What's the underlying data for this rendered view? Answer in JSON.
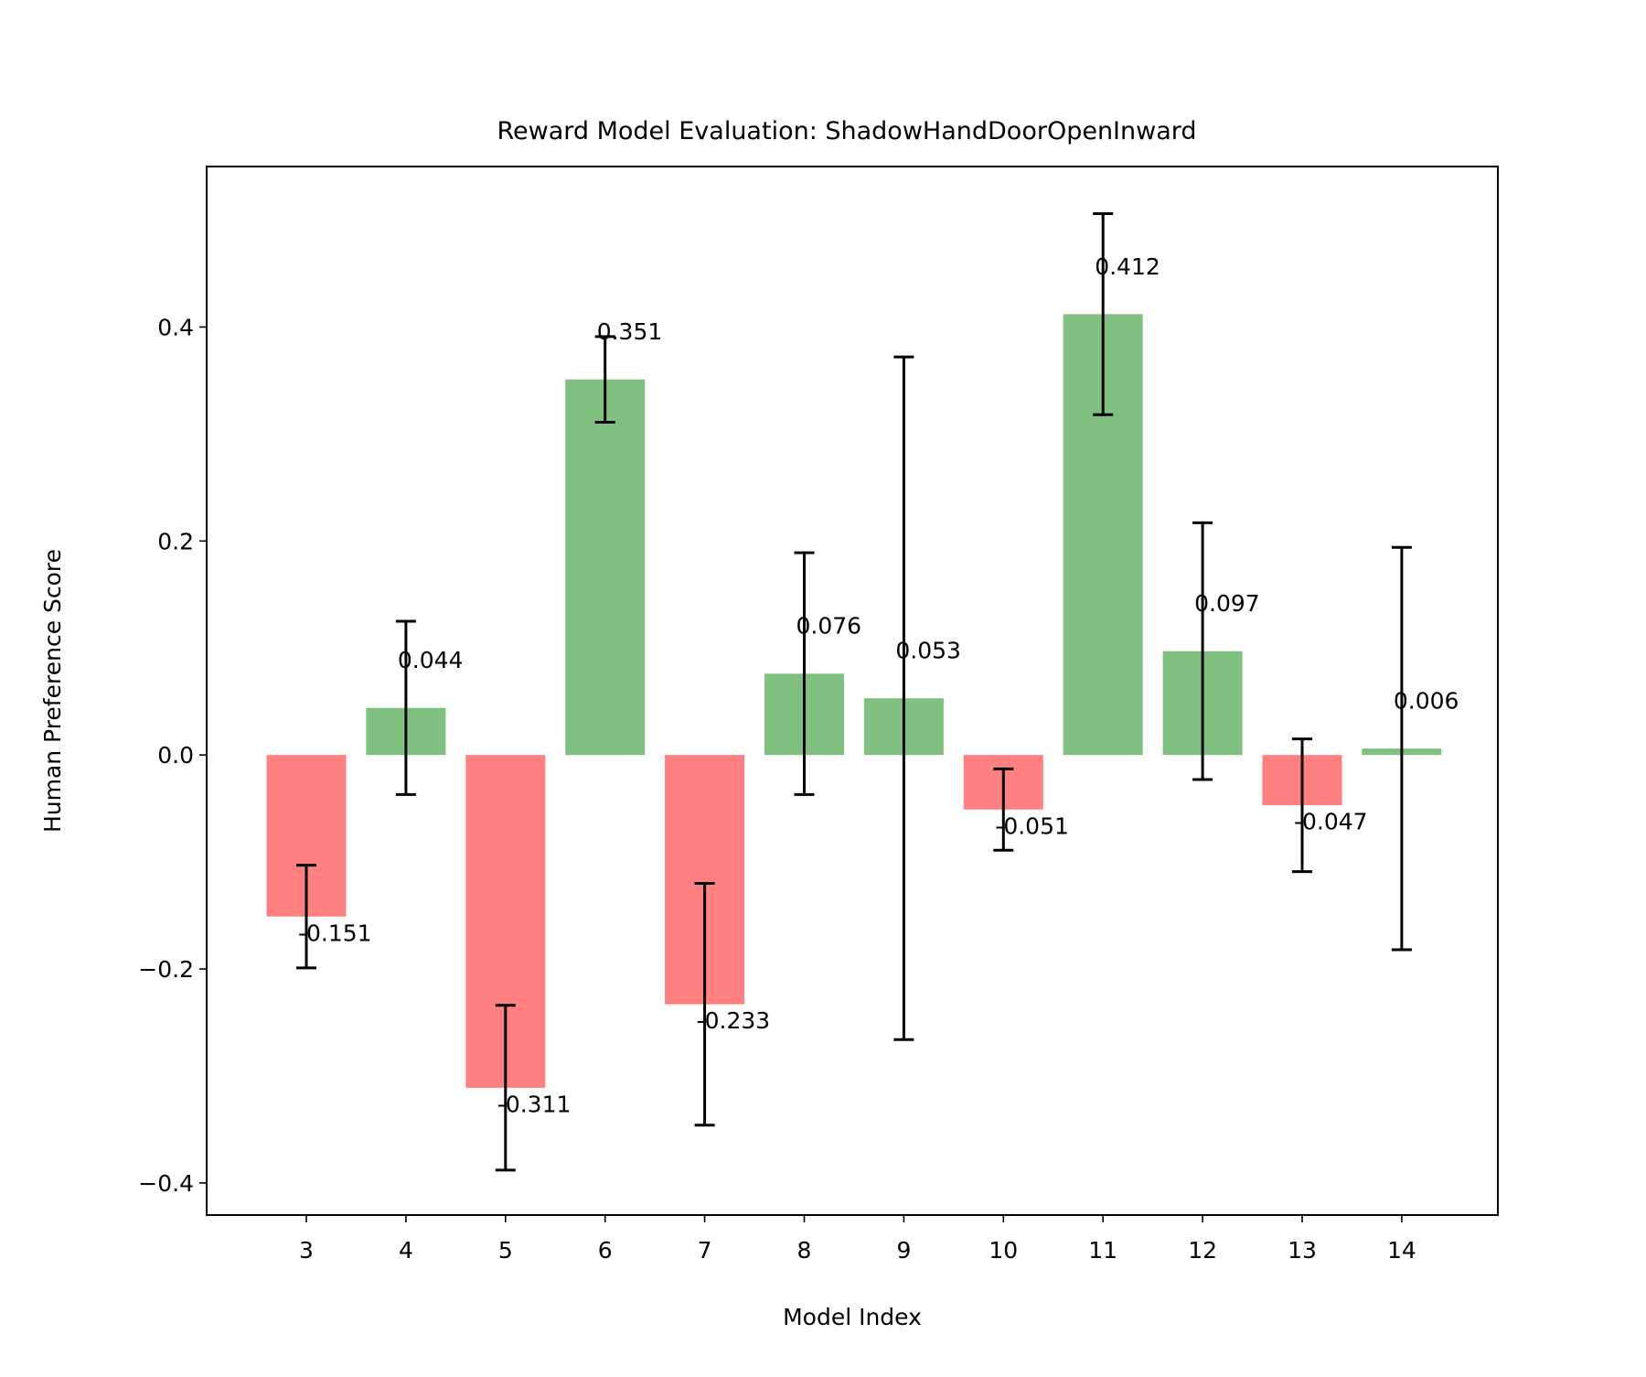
{
  "chart_data": {
    "type": "bar",
    "title": "Reward Model Evaluation: ShadowHandDoorOpenInward",
    "xlabel": "Model Index",
    "ylabel": "Human Preference Score",
    "categories": [
      "3",
      "4",
      "5",
      "6",
      "7",
      "8",
      "9",
      "10",
      "11",
      "12",
      "13",
      "14"
    ],
    "values": [
      -0.151,
      0.044,
      -0.311,
      0.351,
      -0.233,
      0.076,
      0.053,
      -0.051,
      0.412,
      0.097,
      -0.047,
      0.006
    ],
    "value_labels": [
      "-0.151",
      "0.044",
      "-0.311",
      "0.351",
      "-0.233",
      "0.076",
      "0.053",
      "-0.051",
      "0.412",
      "0.097",
      "-0.047",
      "0.006"
    ],
    "errors": [
      0.048,
      0.081,
      0.077,
      0.04,
      0.113,
      0.113,
      0.319,
      0.038,
      0.094,
      0.12,
      0.062,
      0.188
    ],
    "ylim": [
      -0.43,
      0.55
    ],
    "yticks": [
      -0.4,
      -0.2,
      0.0,
      0.2,
      0.4
    ],
    "ytick_labels": [
      "−0.4",
      "−0.2",
      "0.0",
      "0.2",
      "0.4"
    ],
    "grid": false,
    "colors": {
      "positive": "#80c080",
      "negative": "#ff8080",
      "error": "#000000"
    }
  }
}
